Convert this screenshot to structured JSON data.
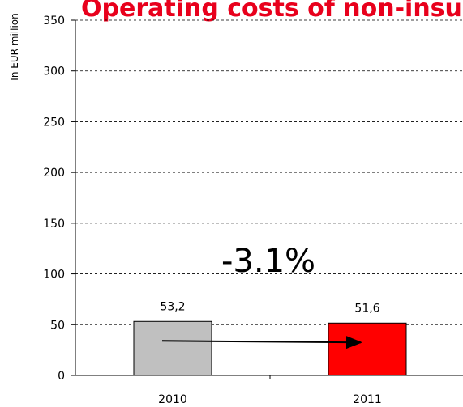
{
  "chart_data": {
    "type": "bar",
    "title": "Operating costs of non-insurance",
    "y_label": "In EUR million",
    "categories": [
      "2010",
      "2011"
    ],
    "values": [
      53.2,
      51.6
    ],
    "value_labels": [
      "53,2",
      "51,6"
    ],
    "colors": [
      "#c0c0c0",
      "#ff0000"
    ],
    "annotation": "-3.1%",
    "ylim": [
      0,
      350
    ],
    "yticks": [
      0,
      50,
      100,
      150,
      200,
      250,
      300,
      350
    ],
    "grid": true
  }
}
